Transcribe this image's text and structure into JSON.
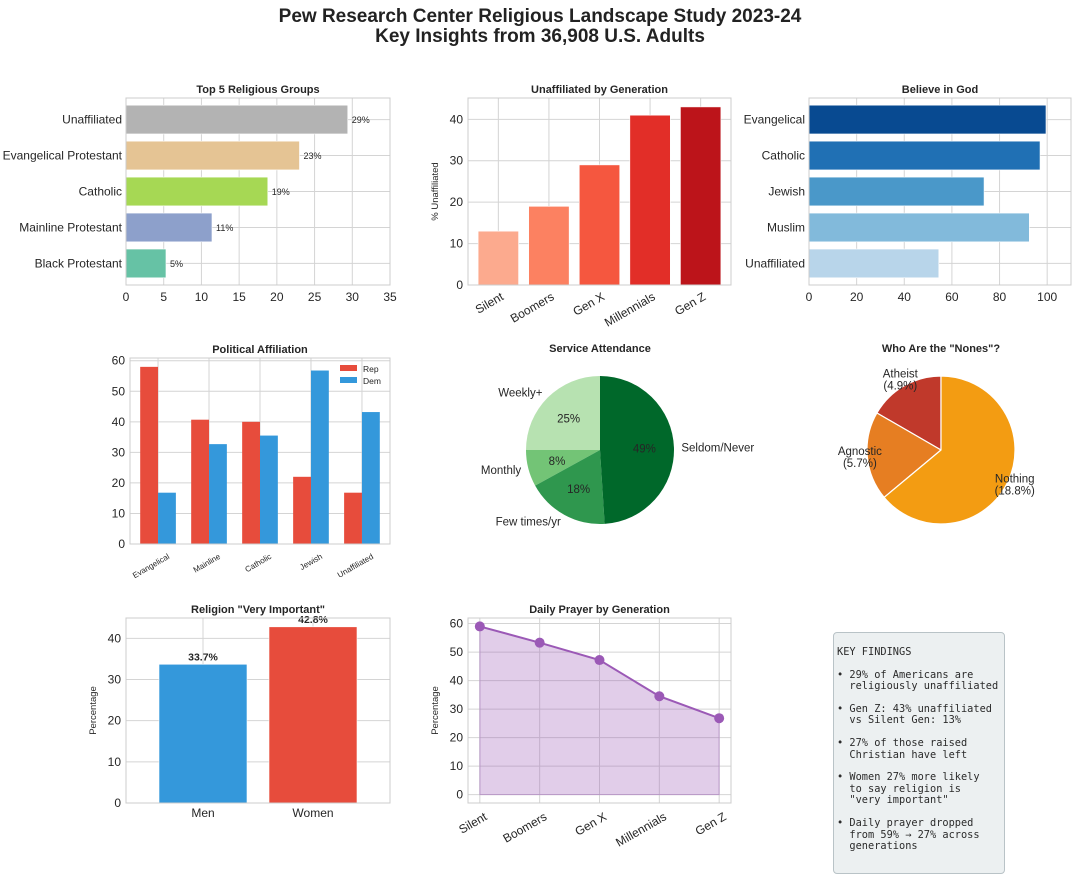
{
  "page": {
    "title_line1": "Pew Research Center Religious Landscape Study 2023-24",
    "title_line2": "Key Insights from 36,908 U.S. Adults"
  },
  "chart_data": [
    {
      "id": "top5",
      "type": "bar",
      "orientation": "horizontal",
      "title": "Top 5 Religious Groups",
      "categories": [
        "Unaffiliated",
        "Evangelical Protestant",
        "Catholic",
        "Mainline Protestant",
        "Black Protestant"
      ],
      "values": [
        29.4,
        23.0,
        18.8,
        11.4,
        5.3
      ],
      "data_labels": [
        "29%",
        "23%",
        "19%",
        "11%",
        "5%"
      ],
      "colors": [
        "#b3b3b3",
        "#e5c494",
        "#a6d854",
        "#8da0cb",
        "#66c2a5"
      ],
      "xlim": [
        0,
        35
      ],
      "xticks": [
        0,
        5,
        10,
        15,
        20,
        25,
        30,
        35
      ],
      "xlabel": "",
      "ylabel": "",
      "grid": true
    },
    {
      "id": "unaffiliated_gen",
      "type": "bar",
      "title": "Unaffiliated by Generation",
      "categories": [
        "Silent",
        "Boomers",
        "Gen X",
        "Millennials",
        "Gen Z"
      ],
      "values": [
        13,
        19,
        29,
        41,
        43
      ],
      "colors": [
        "#fcaa8e",
        "#fc8161",
        "#f5573f",
        "#e22e28",
        "#bc141a"
      ],
      "ylabel": "% Unaffiliated",
      "ylim": [
        0,
        45.15
      ],
      "yticks": [
        0,
        10,
        20,
        30,
        40
      ],
      "grid": true
    },
    {
      "id": "believe_god",
      "type": "bar",
      "orientation": "horizontal",
      "title": "Believe in God",
      "categories": [
        "Evangelical",
        "Catholic",
        "Jewish",
        "Muslim",
        "Unaffiliated"
      ],
      "values": [
        99.5,
        97,
        73.5,
        92.5,
        54.5
      ],
      "colors": [
        "#084a91",
        "#2070b4",
        "#4a98c9",
        "#82badb",
        "#b8d5ea"
      ],
      "xlim": [
        0,
        110
      ],
      "xticks": [
        0,
        20,
        40,
        60,
        80,
        100
      ],
      "grid": true
    },
    {
      "id": "political",
      "type": "bar",
      "grouped": true,
      "title": "Political Affiliation",
      "categories": [
        "Evangelical",
        "Mainline",
        "Catholic",
        "Jewish",
        "Unaffiliated"
      ],
      "series": [
        {
          "name": "Rep",
          "values": [
            58,
            40.7,
            40,
            22,
            16.8
          ],
          "color": "#e74c3c"
        },
        {
          "name": "Dem",
          "values": [
            16.8,
            32.7,
            35.5,
            56.8,
            43.2
          ],
          "color": "#3498db"
        }
      ],
      "ylim": [
        0,
        60.9
      ],
      "yticks": [
        0,
        10,
        20,
        30,
        40,
        50,
        60
      ],
      "legend": "top-right",
      "grid": true
    },
    {
      "id": "attendance",
      "type": "pie",
      "title": "Service Attendance",
      "labels": [
        "Weekly+",
        "Monthly",
        "Few times/yr",
        "Seldom/Never"
      ],
      "values": [
        25,
        8,
        18,
        49
      ],
      "pct_labels": [
        "25%",
        "8%",
        "18%",
        "49%"
      ],
      "colors": [
        "#b7e2b1",
        "#73c476",
        "#2f974e",
        "#00682a"
      ]
    },
    {
      "id": "nones",
      "type": "pie",
      "title": "Who Are the \"Nones\"?",
      "labels": [
        "Atheist\n(4.9%)",
        "Agnostic\n(5.7%)",
        "Nothing\n(18.8%)"
      ],
      "values": [
        4.9,
        5.7,
        18.8
      ],
      "colors": [
        "#c0392b",
        "#e67e22",
        "#f39c12"
      ]
    },
    {
      "id": "very_important",
      "type": "bar",
      "title": "Religion \"Very Important\"",
      "categories": [
        "Men",
        "Women"
      ],
      "values": [
        33.7,
        42.8
      ],
      "data_labels": [
        "33.7%",
        "42.8%"
      ],
      "colors": [
        "#3498db",
        "#e74c3c"
      ],
      "ylabel": "Percentage",
      "ylim": [
        0,
        44.94
      ],
      "yticks": [
        0,
        10,
        20,
        30,
        40
      ],
      "grid": true
    },
    {
      "id": "prayer",
      "type": "area",
      "title": "Daily Prayer by Generation",
      "categories": [
        "Silent",
        "Boomers",
        "Gen X",
        "Millennials",
        "Gen Z"
      ],
      "values": [
        59,
        53.3,
        47.2,
        34.5,
        26.8
      ],
      "color": "#9b59b6",
      "ylabel": "Percentage",
      "ylim": [
        -2.95,
        61.95
      ],
      "yticks": [
        0,
        10,
        20,
        30,
        40,
        50,
        60
      ],
      "grid": true
    }
  ],
  "key_findings": {
    "heading": "KEY FINDINGS",
    "items": [
      "• 29% of Americans are\n  religiously unaffiliated",
      "• Gen Z: 43% unaffiliated\n  vs Silent Gen: 13%",
      "• 27% of those raised\n  Christian have left",
      "• Women 27% more likely\n  to say religion is\n  \"very important\"",
      "• Daily prayer dropped\n  from 59% → 27% across\n  generations"
    ]
  }
}
